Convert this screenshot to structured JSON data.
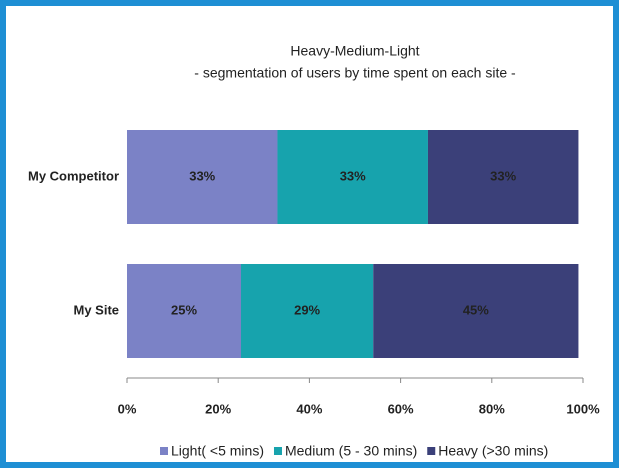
{
  "chart_data": {
    "type": "stacked-bar-horizontal",
    "title": "Heavy-Medium-Light",
    "subtitle": "- segmentation of users by time spent on each site -",
    "categories": [
      "My Competitor",
      "My Site"
    ],
    "series": [
      {
        "name": "Light( <5 mins)",
        "color": "#7b82c6",
        "values": [
          33,
          25
        ],
        "value_labels": [
          "33%",
          "25%"
        ]
      },
      {
        "name": "Medium (5 - 30 mins)",
        "color": "#17a3ad",
        "values": [
          33,
          29
        ],
        "value_labels": [
          "33%",
          "29%"
        ]
      },
      {
        "name": "Heavy (>30 mins)",
        "color": "#3b4079",
        "values": [
          33,
          45
        ],
        "value_labels": [
          "33%",
          "45%"
        ]
      }
    ],
    "xlim": [
      0,
      100
    ],
    "xticks": [
      {
        "value": 0,
        "label": "0%"
      },
      {
        "value": 20,
        "label": "20%"
      },
      {
        "value": 40,
        "label": "40%"
      },
      {
        "value": 60,
        "label": "60%"
      },
      {
        "value": 80,
        "label": "80%"
      },
      {
        "value": 100,
        "label": "100%"
      }
    ],
    "legend": "bottom"
  }
}
